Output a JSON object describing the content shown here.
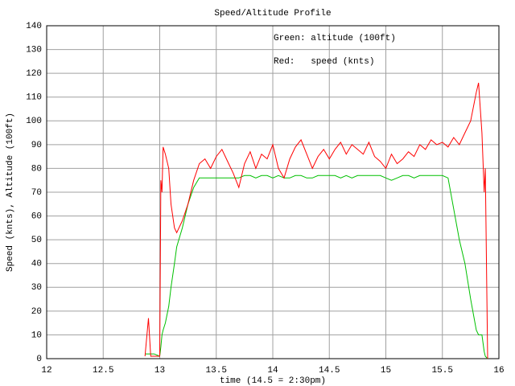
{
  "chart_data": {
    "type": "line",
    "title": "Speed/Altitude Profile",
    "x_label": "time (14.5 = 2:30pm)",
    "y_label": "Speed (knts), Altitude (100ft)",
    "x": [
      12.87,
      12.9,
      12.92,
      12.95,
      13.0,
      13.01,
      13.02,
      13.03,
      13.05,
      13.08,
      13.1,
      13.13,
      13.15,
      13.2,
      13.25,
      13.3,
      13.35,
      13.4,
      13.45,
      13.5,
      13.55,
      13.6,
      13.65,
      13.7,
      13.75,
      13.8,
      13.85,
      13.9,
      13.95,
      14.0,
      14.05,
      14.1,
      14.15,
      14.2,
      14.25,
      14.3,
      14.35,
      14.4,
      14.45,
      14.5,
      14.55,
      14.6,
      14.65,
      14.7,
      14.75,
      14.8,
      14.85,
      14.9,
      14.95,
      15.0,
      15.05,
      15.1,
      15.15,
      15.2,
      15.25,
      15.3,
      15.35,
      15.4,
      15.45,
      15.5,
      15.55,
      15.6,
      15.65,
      15.7,
      15.75,
      15.8,
      15.82,
      15.85,
      15.87,
      15.88,
      15.9
    ],
    "series": [
      {
        "name": "Green: altitude (100ft)",
        "color": "#00c000",
        "values": [
          2,
          2,
          2,
          2,
          1,
          5,
          10,
          12,
          15,
          22,
          30,
          40,
          47,
          55,
          65,
          72,
          76,
          76,
          76,
          76,
          76,
          76,
          76,
          76,
          77,
          77,
          76,
          77,
          77,
          76,
          77,
          76,
          76,
          77,
          77,
          76,
          76,
          77,
          77,
          77,
          77,
          76,
          77,
          76,
          77,
          77,
          77,
          77,
          77,
          76,
          75,
          76,
          77,
          77,
          76,
          77,
          77,
          77,
          77,
          77,
          76,
          63,
          50,
          40,
          25,
          12,
          10,
          10,
          3,
          1,
          0
        ]
      },
      {
        "name": "Red:   speed (knts)",
        "color": "#ff0000",
        "values": [
          1,
          17,
          1,
          1,
          1,
          75,
          70,
          89,
          86,
          80,
          65,
          55,
          53,
          58,
          65,
          75,
          82,
          84,
          80,
          85,
          88,
          83,
          78,
          72,
          82,
          87,
          80,
          86,
          84,
          90,
          80,
          76,
          84,
          89,
          92,
          86,
          80,
          85,
          88,
          84,
          88,
          91,
          86,
          90,
          88,
          86,
          91,
          85,
          83,
          80,
          86,
          82,
          84,
          87,
          85,
          90,
          88,
          92,
          90,
          91,
          89,
          93,
          90,
          95,
          100,
          112,
          116,
          95,
          70,
          80,
          0
        ]
      }
    ],
    "xlim": [
      12,
      16
    ],
    "ylim": [
      0,
      140
    ],
    "xticks": [
      12,
      12.5,
      13,
      13.5,
      14,
      14.5,
      15,
      15.5,
      16
    ],
    "yticks": [
      0,
      10,
      20,
      30,
      40,
      50,
      60,
      70,
      80,
      90,
      100,
      110,
      120,
      130,
      140
    ],
    "grid": true
  }
}
